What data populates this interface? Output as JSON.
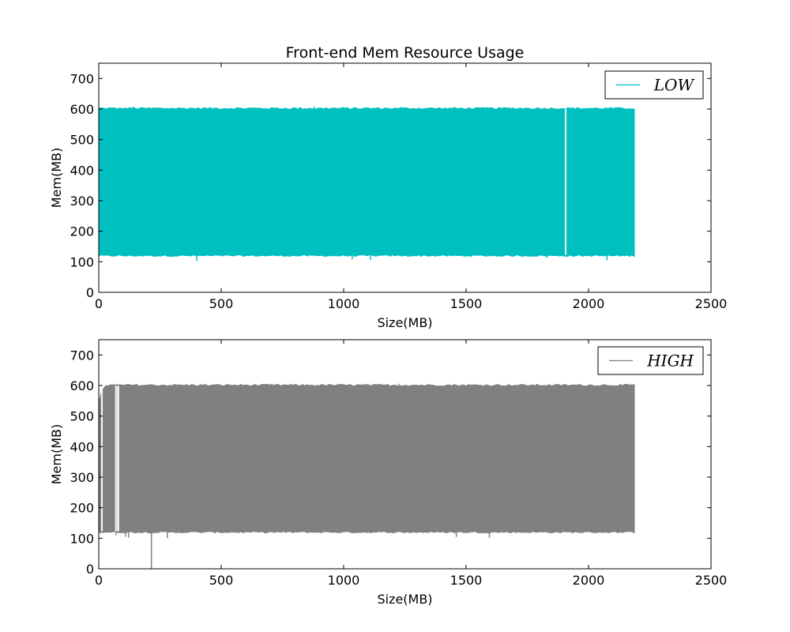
{
  "chart_data": [
    {
      "type": "line",
      "title": "Front-end Mem Resource Usage",
      "xlabel": "Size(MB)",
      "ylabel": "Mem(MB)",
      "xlim": [
        0,
        2500
      ],
      "ylim": [
        0,
        750
      ],
      "xticks": [
        0,
        500,
        1000,
        1500,
        2000,
        2500
      ],
      "yticks": [
        0,
        100,
        200,
        300,
        400,
        500,
        600,
        700
      ],
      "grid": false,
      "legend_position": "top-right",
      "series": [
        {
          "name": "LOW",
          "color": "#00bfbf",
          "x_range": [
            0,
            2190
          ],
          "band_low": 120,
          "band_high": 602,
          "notes": "Dense oscillation between ~120 and ~602 MB across the full x range",
          "low_spikes": [
            {
              "x": 400,
              "y": 103
            },
            {
              "x": 1035,
              "y": 108
            },
            {
              "x": 1110,
              "y": 106
            },
            {
              "x": 1830,
              "y": 113
            },
            {
              "x": 2075,
              "y": 105
            }
          ],
          "high_spikes": [
            {
              "x": 140,
              "y": 608
            },
            {
              "x": 880,
              "y": 608
            },
            {
              "x": 1235,
              "y": 607
            }
          ],
          "gaps": [
            {
              "x_start": 1903,
              "x_end": 1910
            }
          ]
        }
      ]
    },
    {
      "type": "line",
      "title": "",
      "xlabel": "Size(MB)",
      "ylabel": "Mem(MB)",
      "xlim": [
        0,
        2500
      ],
      "ylim": [
        0,
        750
      ],
      "xticks": [
        0,
        500,
        1000,
        1500,
        2000,
        2500
      ],
      "yticks": [
        0,
        100,
        200,
        300,
        400,
        500,
        600,
        700
      ],
      "grid": false,
      "legend_position": "top-right",
      "series": [
        {
          "name": "HIGH",
          "color": "#808080",
          "x_range": [
            0,
            2190
          ],
          "band_low": 120,
          "band_high": 601,
          "notes": "Dense oscillation between ~120 and ~601 MB; start ramps up from ~540 at x=0",
          "low_spikes": [
            {
              "x": 70,
              "y": 110
            },
            {
              "x": 110,
              "y": 105
            },
            {
              "x": 122,
              "y": 102
            },
            {
              "x": 215,
              "y": 0
            },
            {
              "x": 280,
              "y": 100
            },
            {
              "x": 1460,
              "y": 104
            },
            {
              "x": 1595,
              "y": 102
            }
          ],
          "high_spikes": [
            {
              "x": 1225,
              "y": 606
            }
          ],
          "gaps": [
            {
              "x_start": 10,
              "x_end": 16
            },
            {
              "x_start": 67,
              "x_end": 73
            },
            {
              "x_start": 75,
              "x_end": 83
            }
          ]
        }
      ]
    }
  ]
}
